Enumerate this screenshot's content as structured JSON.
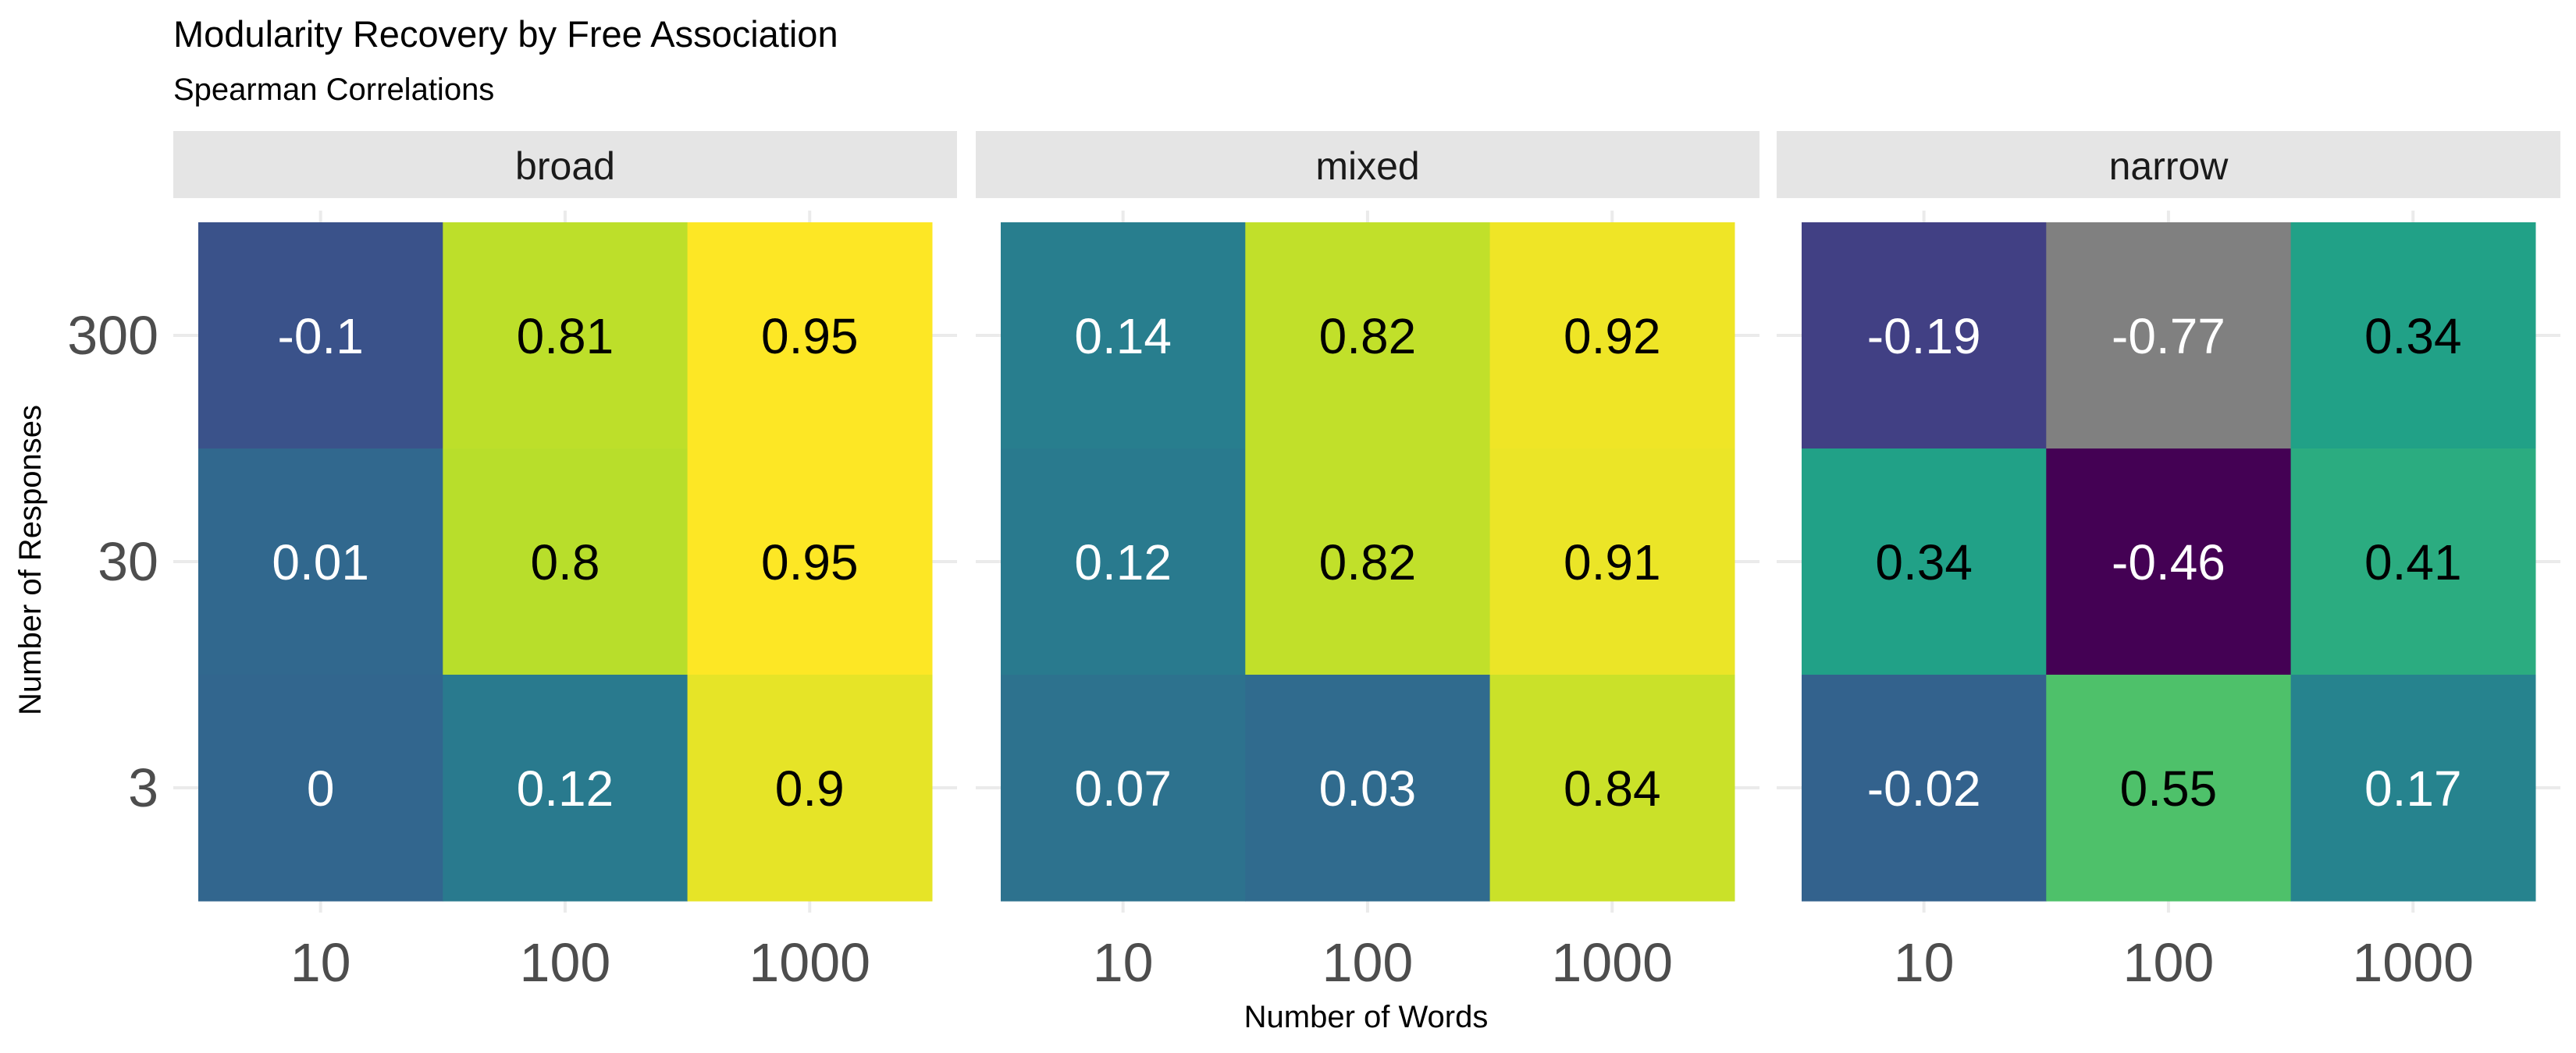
{
  "chart_data": {
    "type": "heatmap",
    "title": "Modularity Recovery by Free Association",
    "subtitle": "Spearman Correlations",
    "xlabel": "Number of Words",
    "ylabel": "Number of Responses",
    "x_categories": [
      "10",
      "100",
      "1000"
    ],
    "y_categories": [
      "300",
      "30",
      "3"
    ],
    "grid": true,
    "legend": "none",
    "missing_color": "#808080",
    "colormap": "viridis",
    "color_limits": [
      -0.46,
      0.95
    ],
    "panels": [
      {
        "name": "broad",
        "values": [
          [
            -0.1,
            0.81,
            0.95
          ],
          [
            0.01,
            0.8,
            0.95
          ],
          [
            0,
            0.12,
            0.9
          ]
        ],
        "labels": [
          [
            "-0.1",
            "0.81",
            "0.95"
          ],
          [
            "0.01",
            "0.8",
            "0.95"
          ],
          [
            "0",
            "0.12",
            "0.9"
          ]
        ]
      },
      {
        "name": "mixed",
        "values": [
          [
            0.14,
            0.82,
            0.92
          ],
          [
            0.12,
            0.82,
            0.91
          ],
          [
            0.07,
            0.03,
            0.84
          ]
        ],
        "labels": [
          [
            "0.14",
            "0.82",
            "0.92"
          ],
          [
            "0.12",
            "0.82",
            "0.91"
          ],
          [
            "0.07",
            "0.03",
            "0.84"
          ]
        ]
      },
      {
        "name": "narrow",
        "values": [
          [
            -0.19,
            -0.77,
            0.34
          ],
          [
            0.34,
            -0.46,
            0.41
          ],
          [
            -0.02,
            0.55,
            0.17
          ]
        ],
        "labels": [
          [
            "-0.19",
            "-0.77",
            "0.34"
          ],
          [
            "0.34",
            "-0.46",
            "0.41"
          ],
          [
            "-0.02",
            "0.55",
            "0.17"
          ]
        ]
      }
    ]
  }
}
